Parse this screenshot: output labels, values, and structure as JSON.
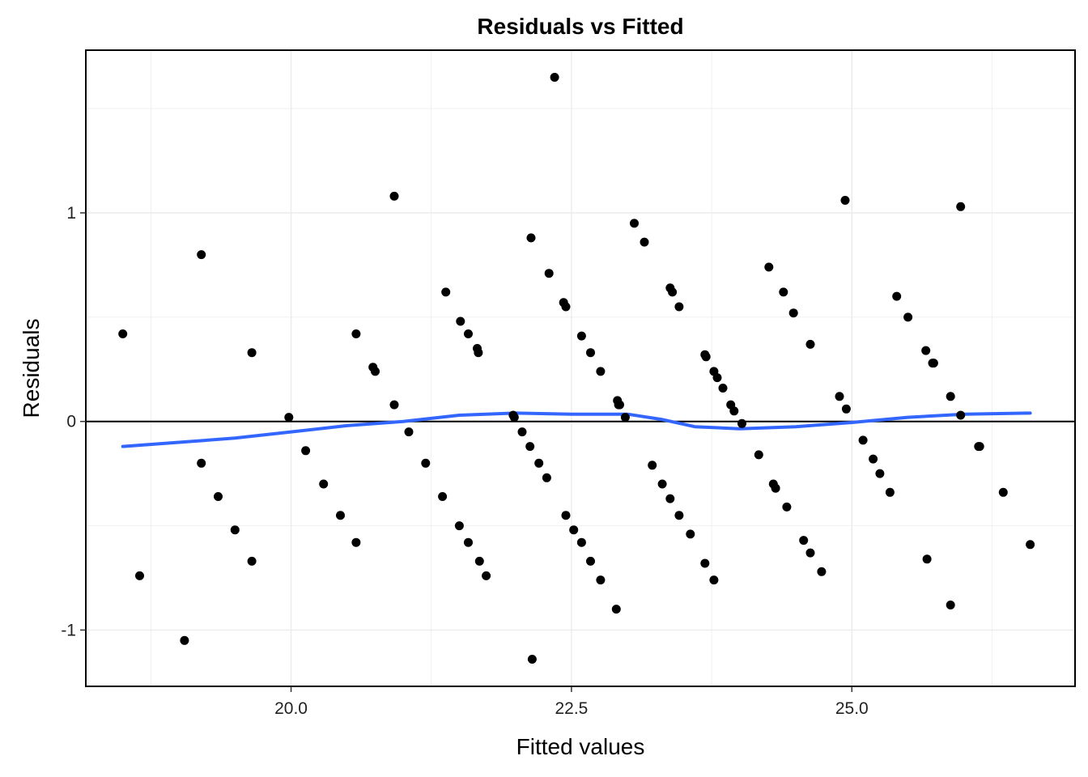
{
  "chart_data": {
    "type": "scatter",
    "title": "Residuals vs Fitted",
    "xlabel": "Fitted values",
    "ylabel": "Residuals",
    "xlim": [
      18.17,
      26.99
    ],
    "ylim": [
      -1.27,
      1.78
    ],
    "x_ticks": [
      20.0,
      22.5,
      25.0
    ],
    "x_tick_labels": [
      "20.0",
      "22.5",
      "25.0"
    ],
    "y_ticks": [
      -1,
      0,
      1
    ],
    "y_tick_labels": [
      "-1",
      "0",
      "1"
    ],
    "grid": true,
    "reference_line_y": 0,
    "colors": {
      "points": "#000000",
      "smooth": "#3366FF",
      "reference": "#000000",
      "grid": "#EBEBEB"
    },
    "points": [
      [
        18.5,
        0.42
      ],
      [
        18.65,
        -0.74
      ],
      [
        19.05,
        -1.05
      ],
      [
        19.2,
        0.8
      ],
      [
        19.2,
        -0.2
      ],
      [
        19.35,
        -0.36
      ],
      [
        19.5,
        -0.52
      ],
      [
        19.65,
        0.33
      ],
      [
        19.65,
        -0.67
      ],
      [
        19.98,
        0.02
      ],
      [
        20.13,
        -0.14
      ],
      [
        20.29,
        -0.3
      ],
      [
        20.44,
        -0.45
      ],
      [
        20.58,
        0.42
      ],
      [
        20.58,
        -0.58
      ],
      [
        20.73,
        0.26
      ],
      [
        20.75,
        0.24
      ],
      [
        20.92,
        1.08
      ],
      [
        20.92,
        0.08
      ],
      [
        21.05,
        -0.05
      ],
      [
        21.2,
        -0.2
      ],
      [
        21.35,
        -0.36
      ],
      [
        21.38,
        0.62
      ],
      [
        21.5,
        -0.5
      ],
      [
        21.51,
        0.48
      ],
      [
        21.58,
        -0.58
      ],
      [
        21.58,
        0.42
      ],
      [
        21.66,
        0.35
      ],
      [
        21.67,
        0.33
      ],
      [
        21.68,
        -0.67
      ],
      [
        21.74,
        -0.74
      ],
      [
        21.98,
        0.03
      ],
      [
        21.99,
        0.02
      ],
      [
        22.06,
        -0.05
      ],
      [
        22.13,
        -0.12
      ],
      [
        22.14,
        0.88
      ],
      [
        22.15,
        -1.14
      ],
      [
        22.21,
        -0.2
      ],
      [
        22.28,
        -0.27
      ],
      [
        22.3,
        0.71
      ],
      [
        22.35,
        1.65
      ],
      [
        22.43,
        0.57
      ],
      [
        22.45,
        0.55
      ],
      [
        22.45,
        -0.45
      ],
      [
        22.52,
        -0.52
      ],
      [
        22.59,
        0.41
      ],
      [
        22.59,
        -0.58
      ],
      [
        22.67,
        0.33
      ],
      [
        22.67,
        -0.67
      ],
      [
        22.76,
        0.24
      ],
      [
        22.76,
        -0.76
      ],
      [
        22.9,
        -0.9
      ],
      [
        22.91,
        0.1
      ],
      [
        22.92,
        0.08
      ],
      [
        22.93,
        0.08
      ],
      [
        22.98,
        0.02
      ],
      [
        23.06,
        0.95
      ],
      [
        23.15,
        0.86
      ],
      [
        23.22,
        -0.21
      ],
      [
        23.31,
        -0.3
      ],
      [
        23.38,
        -0.37
      ],
      [
        23.38,
        0.64
      ],
      [
        23.4,
        0.62
      ],
      [
        23.46,
        0.55
      ],
      [
        23.46,
        -0.45
      ],
      [
        23.56,
        -0.54
      ],
      [
        23.69,
        0.32
      ],
      [
        23.7,
        0.31
      ],
      [
        23.69,
        -0.68
      ],
      [
        23.77,
        0.24
      ],
      [
        23.77,
        -0.76
      ],
      [
        23.8,
        0.21
      ],
      [
        23.85,
        0.16
      ],
      [
        23.92,
        0.08
      ],
      [
        23.95,
        0.05
      ],
      [
        24.02,
        -0.01
      ],
      [
        24.17,
        -0.16
      ],
      [
        24.26,
        0.74
      ],
      [
        24.3,
        -0.3
      ],
      [
        24.32,
        -0.32
      ],
      [
        24.39,
        0.62
      ],
      [
        24.42,
        -0.41
      ],
      [
        24.48,
        0.52
      ],
      [
        24.57,
        -0.57
      ],
      [
        24.63,
        0.37
      ],
      [
        24.63,
        -0.63
      ],
      [
        24.73,
        -0.72
      ],
      [
        24.89,
        0.12
      ],
      [
        24.94,
        1.06
      ],
      [
        24.95,
        0.06
      ],
      [
        25.1,
        -0.09
      ],
      [
        25.19,
        -0.18
      ],
      [
        25.25,
        -0.25
      ],
      [
        25.34,
        -0.34
      ],
      [
        25.4,
        0.6
      ],
      [
        25.5,
        0.5
      ],
      [
        25.66,
        0.34
      ],
      [
        25.67,
        -0.66
      ],
      [
        25.72,
        0.28
      ],
      [
        25.73,
        0.28
      ],
      [
        25.88,
        0.12
      ],
      [
        25.88,
        -0.88
      ],
      [
        25.97,
        1.03
      ],
      [
        25.97,
        0.03
      ],
      [
        26.13,
        -0.12
      ],
      [
        26.14,
        -0.12
      ],
      [
        26.35,
        -0.34
      ],
      [
        26.59,
        -0.59
      ]
    ],
    "smooth_line": [
      [
        18.5,
        -0.12
      ],
      [
        19.0,
        -0.1
      ],
      [
        19.5,
        -0.08
      ],
      [
        20.0,
        -0.05
      ],
      [
        20.5,
        -0.02
      ],
      [
        21.0,
        0.0
      ],
      [
        21.5,
        0.03
      ],
      [
        22.0,
        0.04
      ],
      [
        22.5,
        0.035
      ],
      [
        23.0,
        0.035
      ],
      [
        23.3,
        0.01
      ],
      [
        23.6,
        -0.025
      ],
      [
        24.0,
        -0.035
      ],
      [
        24.5,
        -0.025
      ],
      [
        25.0,
        -0.005
      ],
      [
        25.5,
        0.02
      ],
      [
        26.0,
        0.035
      ],
      [
        26.59,
        0.04
      ]
    ]
  }
}
